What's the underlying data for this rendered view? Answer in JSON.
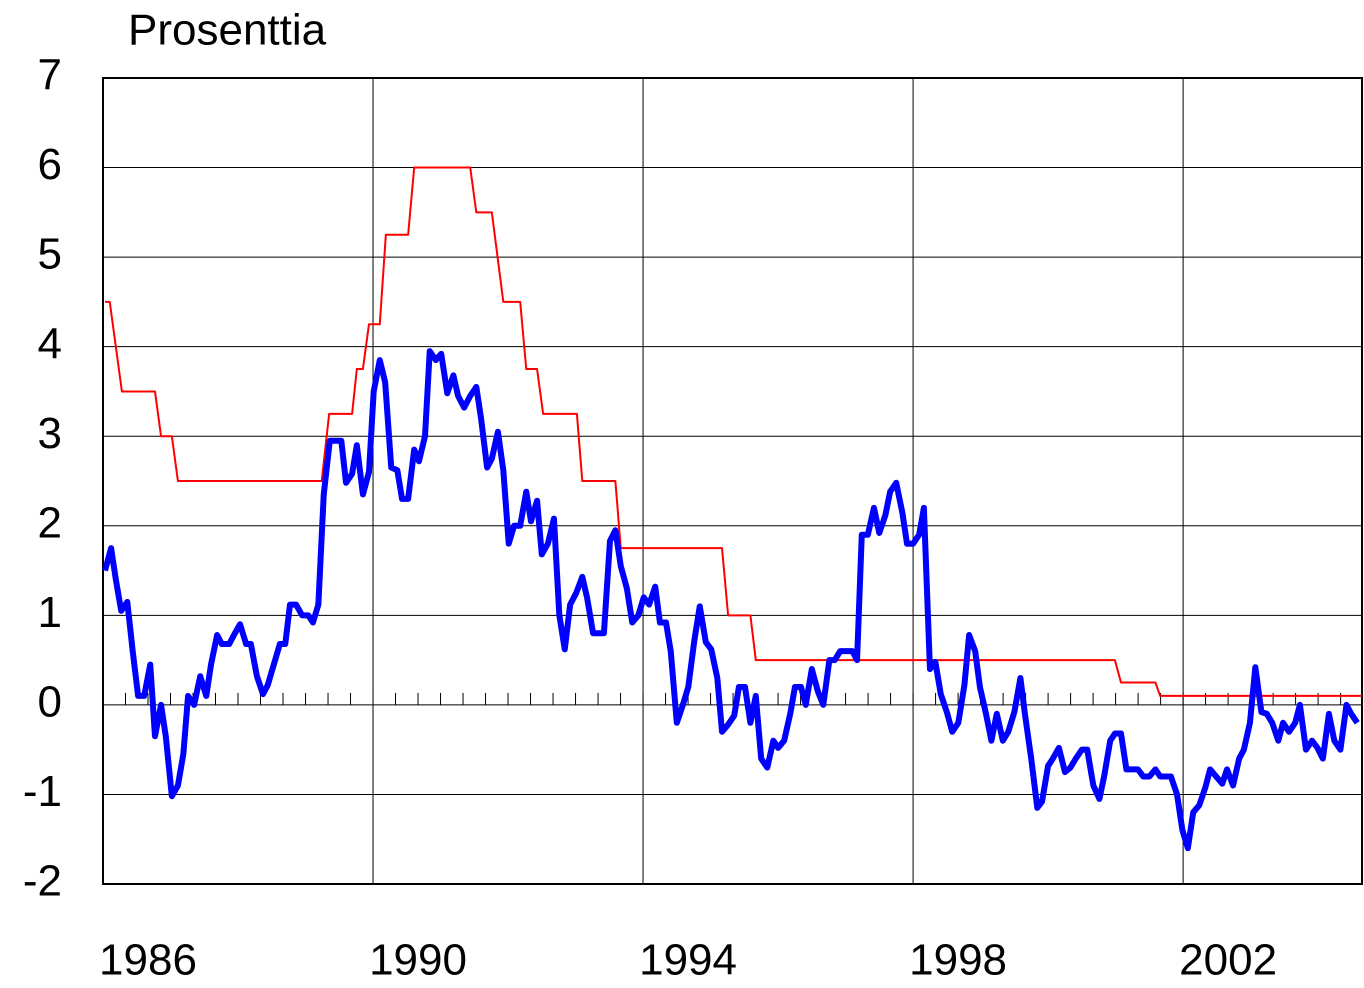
{
  "chart_data": {
    "type": "line",
    "title": "Prosenttia",
    "xlim": [
      1986,
      2004.65
    ],
    "xticks": [
      1986,
      1990,
      1994,
      1998,
      2002
    ],
    "ylim": [
      -2,
      7
    ],
    "yticks": [
      -2,
      -1,
      0,
      1,
      2,
      3,
      4,
      5,
      6,
      7
    ],
    "grid": true,
    "series": [
      {
        "color": "#ff0000",
        "x": [
          1986.03,
          1986.1,
          1986.28,
          1986.77,
          1986.86,
          1987.02,
          1987.11,
          1989.24,
          1989.35,
          1989.69,
          1989.76,
          1989.85,
          1989.94,
          1990.1,
          1990.19,
          1990.52,
          1990.61,
          1991.44,
          1991.53,
          1991.76,
          1991.93,
          1992.18,
          1992.27,
          1992.43,
          1992.52,
          1993.02,
          1993.1,
          1993.59,
          1993.67,
          1995.17,
          1995.26,
          1995.59,
          1995.67,
          2000.99,
          2001.08,
          2001.59,
          2001.66,
          2004.65
        ],
        "values": [
          4.5,
          4.5,
          3.5,
          3.5,
          3.0,
          3.0,
          2.5,
          2.5,
          3.25,
          3.25,
          3.75,
          3.75,
          4.25,
          4.25,
          5.25,
          5.25,
          6.0,
          6.0,
          5.5,
          5.5,
          4.5,
          4.5,
          3.75,
          3.75,
          3.25,
          3.25,
          2.5,
          2.5,
          1.75,
          1.75,
          1.0,
          1.0,
          0.5,
          0.5,
          0.25,
          0.25,
          0.1,
          0.1
        ]
      },
      {
        "color": "#0000ff",
        "x": [
          1986.03,
          1986.12,
          1986.19,
          1986.27,
          1986.36,
          1986.44,
          1986.52,
          1986.61,
          1986.7,
          1986.77,
          1986.86,
          1986.93,
          1987.02,
          1987.11,
          1987.19,
          1987.26,
          1987.35,
          1987.44,
          1987.53,
          1987.6,
          1987.69,
          1987.76,
          1987.87,
          1987.94,
          1988.03,
          1988.12,
          1988.19,
          1988.28,
          1988.37,
          1988.44,
          1988.53,
          1988.62,
          1988.7,
          1988.77,
          1988.86,
          1988.95,
          1989.04,
          1989.11,
          1989.19,
          1989.27,
          1989.36,
          1989.53,
          1989.6,
          1989.69,
          1989.76,
          1989.85,
          1989.94,
          1990.01,
          1990.1,
          1990.18,
          1990.27,
          1990.36,
          1990.43,
          1990.52,
          1990.61,
          1990.68,
          1990.77,
          1990.84,
          1990.93,
          1991.01,
          1991.1,
          1991.19,
          1991.26,
          1991.35,
          1991.44,
          1991.53,
          1991.6,
          1991.69,
          1991.76,
          1991.85,
          1991.93,
          1992.01,
          1992.09,
          1992.18,
          1992.27,
          1992.34,
          1992.43,
          1992.5,
          1992.59,
          1992.68,
          1992.76,
          1992.84,
          1992.92,
          1993.01,
          1993.1,
          1993.17,
          1993.26,
          1993.33,
          1993.42,
          1993.51,
          1993.59,
          1993.67,
          1993.76,
          1993.84,
          1993.93,
          1994.01,
          1994.09,
          1994.18,
          1994.25,
          1994.34,
          1994.41,
          1994.5,
          1994.59,
          1994.67,
          1994.76,
          1994.84,
          1994.93,
          1995.01,
          1995.1,
          1995.17,
          1995.26,
          1995.35,
          1995.42,
          1995.51,
          1995.59,
          1995.67,
          1995.75,
          1995.84,
          1995.93,
          1996.0,
          1996.09,
          1996.18,
          1996.25,
          1996.34,
          1996.41,
          1996.5,
          1996.59,
          1996.67,
          1996.76,
          1996.84,
          1996.92,
          1997.1,
          1997.17,
          1997.24,
          1997.33,
          1997.42,
          1997.5,
          1997.59,
          1997.66,
          1997.75,
          1997.84,
          1997.91,
          1998.0,
          1998.09,
          1998.16,
          1998.25,
          1998.33,
          1998.41,
          1998.5,
          1998.58,
          1998.67,
          1998.76,
          1998.83,
          1998.92,
          1998.99,
          1999.08,
          1999.16,
          1999.24,
          1999.33,
          1999.41,
          1999.5,
          1999.59,
          1999.66,
          1999.75,
          1999.84,
          1999.91,
          2000.0,
          2000.07,
          2000.16,
          2000.25,
          2000.33,
          2000.41,
          2000.5,
          2000.58,
          2000.67,
          2000.76,
          2000.83,
          2000.92,
          2000.99,
          2001.08,
          2001.16,
          2001.24,
          2001.33,
          2001.41,
          2001.5,
          2001.59,
          2001.66,
          2001.75,
          2001.82,
          2001.91,
          2001.99,
          2002.07,
          2002.15,
          2002.24,
          2002.33,
          2002.4,
          2002.49,
          2002.58,
          2002.65,
          2002.74,
          2002.83,
          2002.9,
          2002.99,
          2003.07,
          2003.16,
          2003.24,
          2003.32,
          2003.41,
          2003.48,
          2003.57,
          2003.66,
          2003.73,
          2003.82,
          2003.91,
          2003.99,
          2004.07,
          2004.16,
          2004.24,
          2004.33,
          2004.42,
          2004.49,
          2004.58
        ],
        "values": [
          1.5,
          1.75,
          1.4,
          1.05,
          1.15,
          0.6,
          0.1,
          0.1,
          0.45,
          -0.35,
          0,
          -0.35,
          -1.02,
          -0.9,
          -0.55,
          0.1,
          0,
          0.32,
          0.1,
          0.45,
          0.78,
          0.68,
          0.68,
          0.78,
          0.9,
          0.68,
          0.68,
          0.32,
          0.12,
          0.22,
          0.45,
          0.68,
          0.68,
          1.12,
          1.12,
          1.0,
          1.0,
          0.92,
          1.12,
          2.35,
          2.95,
          2.95,
          2.48,
          2.58,
          2.9,
          2.35,
          2.6,
          3.5,
          3.85,
          3.6,
          2.65,
          2.62,
          2.3,
          2.3,
          2.85,
          2.72,
          3.0,
          3.95,
          3.85,
          3.92,
          3.48,
          3.68,
          3.45,
          3.32,
          3.45,
          3.55,
          3.2,
          2.65,
          2.75,
          3.05,
          2.62,
          1.8,
          2.0,
          2.0,
          2.38,
          2.05,
          2.28,
          1.68,
          1.8,
          2.08,
          1.0,
          0.62,
          1.12,
          1.25,
          1.43,
          1.2,
          0.8,
          0.8,
          0.8,
          1.83,
          1.95,
          1.55,
          1.3,
          0.92,
          1.0,
          1.2,
          1.12,
          1.32,
          0.92,
          0.92,
          0.6,
          -0.2,
          0,
          0.2,
          0.72,
          1.1,
          0.7,
          0.62,
          0.3,
          -0.3,
          -0.22,
          -0.12,
          0.2,
          0.2,
          -0.2,
          0.1,
          -0.6,
          -0.7,
          -0.4,
          -0.48,
          -0.4,
          -0.1,
          0.2,
          0.2,
          0,
          0.4,
          0.15,
          0,
          0.5,
          0.5,
          0.6,
          0.6,
          0.5,
          1.9,
          1.9,
          2.2,
          1.92,
          2.12,
          2.38,
          2.48,
          2.15,
          1.8,
          1.8,
          1.9,
          2.2,
          0.4,
          0.48,
          0.12,
          -0.08,
          -0.3,
          -0.2,
          0.22,
          0.78,
          0.6,
          0.2,
          -0.1,
          -0.4,
          -0.1,
          -0.4,
          -0.3,
          -0.08,
          0.3,
          -0.12,
          -0.6,
          -1.15,
          -1.08,
          -0.68,
          -0.6,
          -0.48,
          -0.75,
          -0.7,
          -0.6,
          -0.5,
          -0.5,
          -0.9,
          -1.05,
          -0.8,
          -0.4,
          -0.32,
          -0.32,
          -0.72,
          -0.72,
          -0.72,
          -0.8,
          -0.8,
          -0.72,
          -0.8,
          -0.8,
          -0.8,
          -1.0,
          -1.4,
          -1.6,
          -1.2,
          -1.12,
          -0.92,
          -0.72,
          -0.8,
          -0.88,
          -0.72,
          -0.9,
          -0.6,
          -0.5,
          -0.2,
          0.42,
          -0.08,
          -0.1,
          -0.2,
          -0.4,
          -0.2,
          -0.3,
          -0.2,
          0,
          -0.5,
          -0.4,
          -0.48,
          -0.6,
          -0.1,
          -0.4,
          -0.5,
          0,
          -0.1,
          -0.2
        ]
      }
    ]
  }
}
